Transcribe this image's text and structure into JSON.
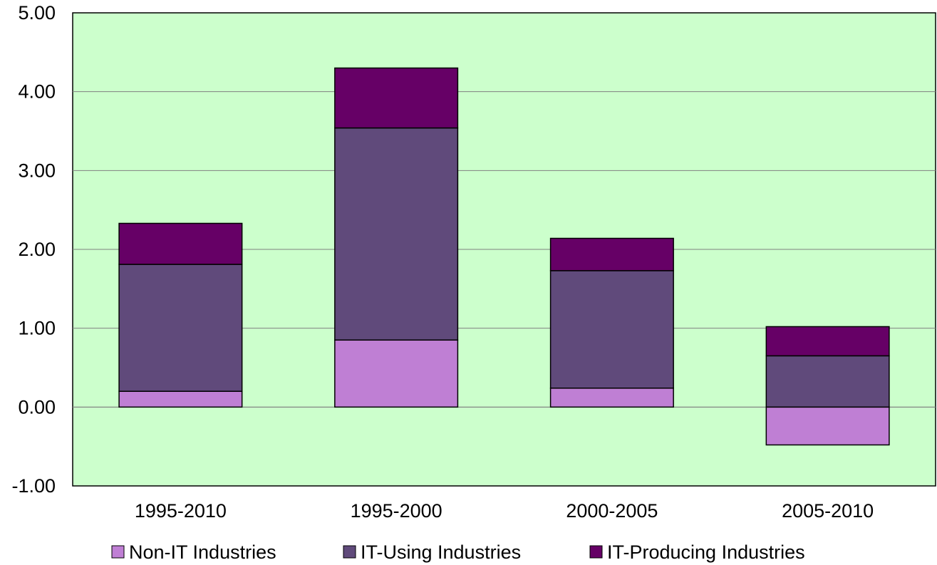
{
  "chart_data": {
    "type": "bar",
    "stacked": true,
    "title": "",
    "xlabel": "",
    "ylabel": "",
    "categories": [
      "1995-2010",
      "1995-2000",
      "2000-2005",
      "2005-2010"
    ],
    "series": [
      {
        "name": "Non-IT Industries",
        "color": "#bf7fd4",
        "values": [
          0.2,
          0.85,
          0.24,
          -0.48
        ]
      },
      {
        "name": "IT-Using Industries",
        "color": "#604a7b",
        "values": [
          1.61,
          2.69,
          1.49,
          0.65
        ]
      },
      {
        "name": "IT-Producing Industries",
        "color": "#660066",
        "values": [
          0.52,
          0.76,
          0.41,
          0.37
        ]
      }
    ],
    "ylim": [
      -1.0,
      5.0
    ],
    "yticks": [
      -1.0,
      0.0,
      1.0,
      2.0,
      3.0,
      4.0,
      5.0
    ],
    "ytick_labels": [
      "-1.00",
      "0.00",
      "1.00",
      "2.00",
      "3.00",
      "4.00",
      "5.00"
    ],
    "grid": true,
    "plot_background": "#ccffcc",
    "legend_position": "bottom"
  }
}
